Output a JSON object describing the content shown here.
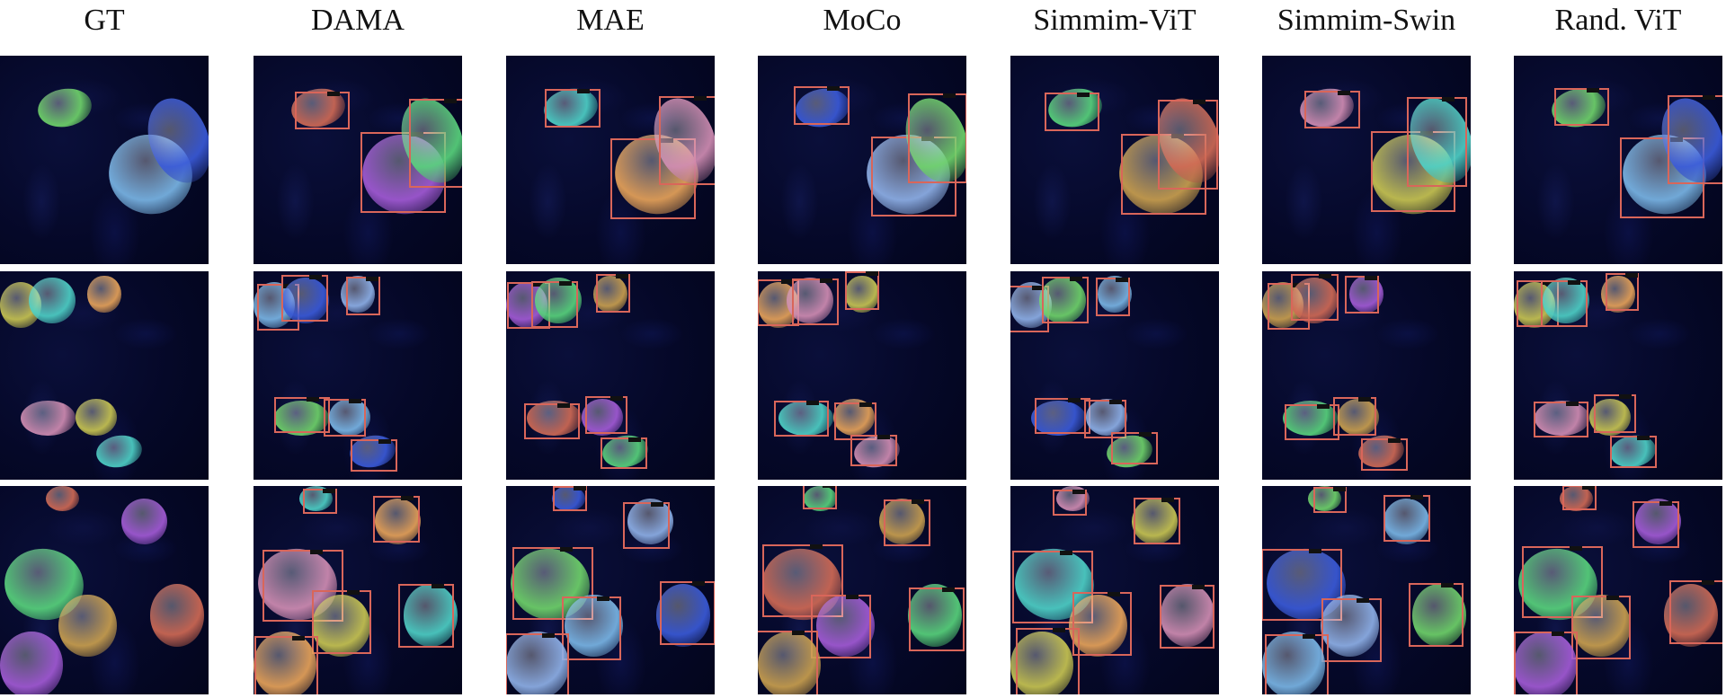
{
  "columns": [
    "GT",
    "DAMA",
    "MAE",
    "MoCo",
    "Simmim-ViT",
    "Simmim-Swin",
    "Rand. ViT"
  ],
  "colors": {
    "box": "#d9665a",
    "background": "#050828",
    "palette": [
      "#6fd36a",
      "#c8c552",
      "#d06a55",
      "#7ab6e6",
      "#4ed0c6",
      "#a35bd6",
      "#3a5ad8",
      "#e7a35a",
      "#58d37c",
      "#8fb1e8",
      "#d18db3",
      "#caa04f"
    ]
  }
}
